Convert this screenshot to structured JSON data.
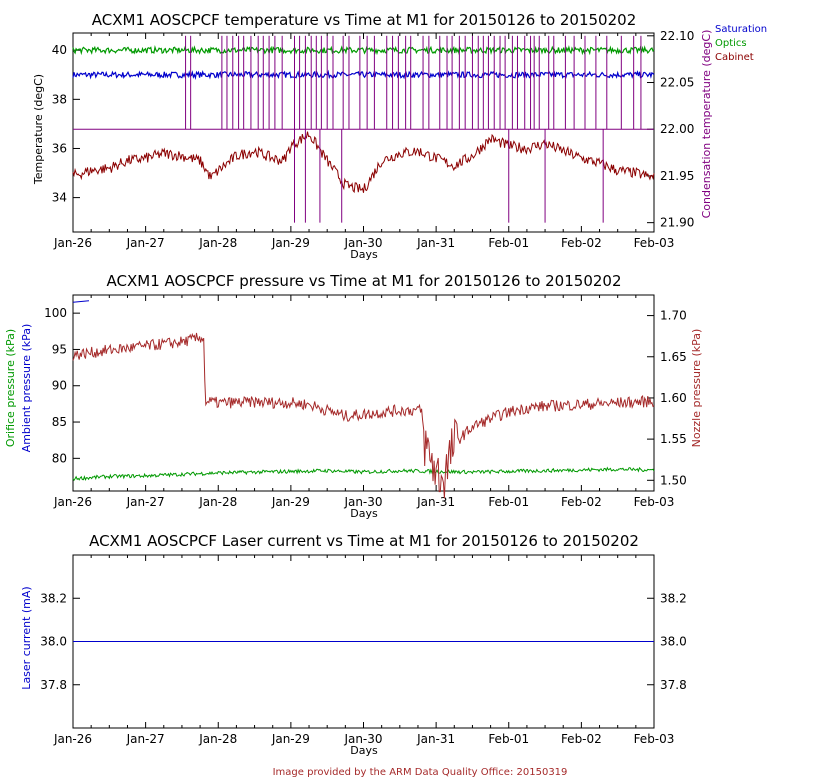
{
  "footer": "Image provided by the ARM Data Quality Office: 20150319",
  "colors": {
    "saturation": "#0000cc",
    "optics": "#009900",
    "cabinet": "#8b0000",
    "condensation": "#800080",
    "pressure": "#a52a2a",
    "ambient": "#0000cc",
    "laser": "#0000cc",
    "footer": "#a52a2a"
  },
  "chart_data": [
    {
      "type": "line",
      "title": "ACXM1 AOSCPCF temperature vs Time at M1 for 20150126 to 20150202",
      "xlabel": "Days",
      "x_ticks": [
        "Jan-26",
        "Jan-27",
        "Jan-28",
        "Jan-29",
        "Jan-30",
        "Jan-31",
        "Feb-01",
        "Feb-02",
        "Feb-03"
      ],
      "xlim": [
        0,
        8
      ],
      "ylabel": "Temperature (degC)",
      "ylim": [
        32.6,
        40.7
      ],
      "y_ticks": [
        "34",
        "36",
        "38",
        "40"
      ],
      "y2label": "Condensation temperature (degC)",
      "y2lim": [
        21.89,
        22.103
      ],
      "y2_ticks": [
        "21.90",
        "21.95",
        "22.00",
        "22.05",
        "22.10"
      ],
      "legend": [
        "Saturation",
        "Optics",
        "Cabinet"
      ],
      "legend_position": "top-right, outside",
      "series": [
        {
          "name": "Saturation",
          "axis": "left",
          "x": [
            0,
            8
          ],
          "values": [
            39.0,
            39.0
          ]
        },
        {
          "name": "Optics",
          "axis": "left",
          "x": [
            0,
            8
          ],
          "values": [
            40.0,
            40.0
          ]
        },
        {
          "name": "Cabinet",
          "axis": "left",
          "x": [
            0,
            0.25,
            0.5,
            0.75,
            1.0,
            1.25,
            1.5,
            1.75,
            1.9,
            2.0,
            2.25,
            2.5,
            2.75,
            2.9,
            3.0,
            3.25,
            3.5,
            3.75,
            4.0,
            4.25,
            4.5,
            4.75,
            5.0,
            5.25,
            5.5,
            5.75,
            6.0,
            6.25,
            6.5,
            6.75,
            7.0,
            7.25,
            7.5,
            7.75,
            8.0
          ],
          "values": [
            34.9,
            35.1,
            35.2,
            35.5,
            35.6,
            35.8,
            35.7,
            35.5,
            34.8,
            35.1,
            35.7,
            35.9,
            35.6,
            35.5,
            36.1,
            36.6,
            35.5,
            34.5,
            34.3,
            35.5,
            35.8,
            35.9,
            35.6,
            35.3,
            35.7,
            36.4,
            36.1,
            36.0,
            36.2,
            35.9,
            35.6,
            35.4,
            35.1,
            35.0,
            34.8
          ]
        },
        {
          "name": "Condensation",
          "axis": "right",
          "x": [
            0,
            8
          ],
          "values": [
            22.0,
            22.0
          ],
          "spikes_up_to": 22.1,
          "spike_x": [
            1.55,
            1.62,
            2.05,
            2.12,
            2.2,
            2.28,
            2.35,
            2.45,
            2.55,
            2.62,
            2.7,
            2.78,
            2.88,
            3.05,
            3.12,
            3.2,
            3.28,
            3.35,
            3.42,
            3.5,
            3.58,
            3.72,
            3.8,
            3.95,
            4.05,
            4.15,
            4.32,
            4.4,
            4.48,
            4.58,
            4.65,
            4.82,
            4.9,
            5.05,
            5.15,
            5.22,
            5.32,
            5.4,
            5.5,
            5.58,
            5.65,
            5.72,
            5.8,
            5.88,
            5.95,
            6.05,
            6.12,
            6.22,
            6.3,
            6.35,
            6.42,
            6.55,
            6.62,
            6.78,
            6.9,
            7.05,
            7.2,
            7.35,
            7.55,
            7.72,
            7.82
          ],
          "dips_to": 21.9,
          "dip_x": [
            3.05,
            3.2,
            3.4,
            3.7,
            6.0,
            6.5,
            7.3
          ]
        }
      ]
    },
    {
      "type": "line",
      "title": "ACXM1 AOSCPCF pressure vs Time at M1 for 20150126 to 20150202",
      "xlabel": "Days",
      "x_ticks": [
        "Jan-26",
        "Jan-27",
        "Jan-28",
        "Jan-29",
        "Jan-30",
        "Jan-31",
        "Feb-01",
        "Feb-02",
        "Feb-03"
      ],
      "xlim": [
        0,
        8
      ],
      "ylabel": "Ambient pressure (kPa)",
      "ylabel2": "Orifice pressure (kPa)",
      "ylim": [
        75.5,
        102.5
      ],
      "y_ticks": [
        "80",
        "85",
        "90",
        "95",
        "100"
      ],
      "y2label": "Nozzle pressure (kPa)",
      "y2lim": [
        1.487,
        1.725
      ],
      "y2_ticks": [
        "1.50",
        "1.55",
        "1.60",
        "1.65",
        "1.70"
      ],
      "series": [
        {
          "name": "Ambient pressure",
          "axis": "left",
          "x": [
            0,
            0.22
          ],
          "values": [
            101.5,
            101.7
          ]
        },
        {
          "name": "Orifice pressure",
          "axis": "left",
          "x": [
            0,
            0.5,
            1.0,
            1.5,
            2.0,
            2.5,
            3.0,
            3.5,
            4.0,
            4.5,
            5.0,
            5.5,
            6.0,
            6.5,
            7.0,
            7.5,
            8.0
          ],
          "values": [
            77.2,
            77.5,
            77.6,
            77.8,
            78.0,
            78.1,
            78.2,
            78.3,
            78.1,
            78.3,
            78.2,
            78.1,
            78.2,
            78.3,
            78.4,
            78.5,
            78.4
          ]
        },
        {
          "name": "Nozzle pressure",
          "axis": "right",
          "x": [
            0,
            0.5,
            1.0,
            1.5,
            1.8,
            1.82,
            2.0,
            2.5,
            3.0,
            3.25,
            3.5,
            3.75,
            4.0,
            4.5,
            4.8,
            4.82,
            5.0,
            5.1,
            5.25,
            5.5,
            5.75,
            6.0,
            6.25,
            6.5,
            7.0,
            7.5,
            8.0
          ],
          "values": [
            1.652,
            1.658,
            1.663,
            1.668,
            1.674,
            1.596,
            1.594,
            1.595,
            1.594,
            1.592,
            1.585,
            1.578,
            1.58,
            1.585,
            1.585,
            1.55,
            1.51,
            1.502,
            1.545,
            1.565,
            1.575,
            1.583,
            1.588,
            1.59,
            1.592,
            1.594,
            1.596
          ]
        }
      ]
    },
    {
      "type": "line",
      "title": "ACXM1 AOSCPCF Laser current vs Time at M1 for 20150126 to 20150202",
      "xlabel": "Days",
      "x_ticks": [
        "Jan-26",
        "Jan-27",
        "Jan-28",
        "Jan-29",
        "Jan-30",
        "Jan-31",
        "Feb-01",
        "Feb-02",
        "Feb-03"
      ],
      "xlim": [
        0,
        8
      ],
      "ylabel": "Laser current (mA)",
      "ylim": [
        37.6,
        38.4
      ],
      "y_ticks": [
        "37.8",
        "38.0",
        "38.2"
      ],
      "y2_ticks": [
        "37.8",
        "38.0",
        "38.2"
      ],
      "series": [
        {
          "name": "Laser current",
          "axis": "left",
          "x": [
            0,
            8
          ],
          "values": [
            38.0,
            38.0
          ]
        }
      ]
    }
  ]
}
